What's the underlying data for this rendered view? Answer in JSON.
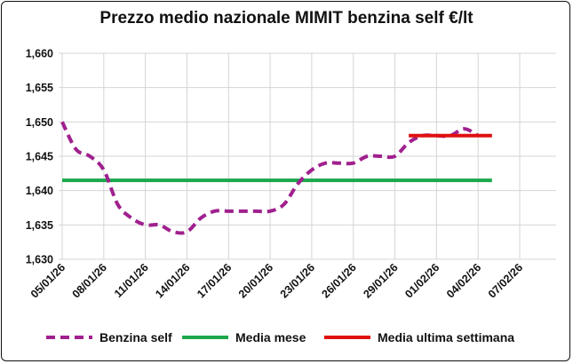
{
  "chart_data": {
    "type": "line",
    "title": "Prezzo medio nazionale MIMIT benzina self €/lt",
    "xlabel": "",
    "ylabel": "",
    "ylim": [
      1.63,
      1.66
    ],
    "y_ticks": [
      "1,630",
      "1,635",
      "1,640",
      "1,645",
      "1,650",
      "1,655",
      "1,660"
    ],
    "x_ticks": [
      "05/01/26",
      "08/01/26",
      "11/01/26",
      "14/01/26",
      "17/01/26",
      "20/01/26",
      "23/01/26",
      "26/01/26",
      "29/01/26",
      "01/02/26",
      "04/02/26",
      "07/02/26"
    ],
    "x": [
      "05/01/26",
      "06/01/26",
      "07/01/26",
      "08/01/26",
      "09/01/26",
      "10/01/26",
      "11/01/26",
      "12/01/26",
      "13/01/26",
      "14/01/26",
      "15/01/26",
      "16/01/26",
      "17/01/26",
      "18/01/26",
      "19/01/26",
      "20/01/26",
      "21/01/26",
      "22/01/26",
      "23/01/26",
      "24/01/26",
      "25/01/26",
      "26/01/26",
      "27/01/26",
      "28/01/26",
      "29/01/26",
      "30/01/26",
      "31/01/26",
      "01/02/26",
      "02/02/26",
      "03/02/26",
      "04/02/26"
    ],
    "series": [
      {
        "name": "Benzina self",
        "color": "#a0208e",
        "style": "dashed",
        "values": [
          1.65,
          1.646,
          1.645,
          1.643,
          1.638,
          1.636,
          1.635,
          1.635,
          1.634,
          1.634,
          1.636,
          1.637,
          1.637,
          1.637,
          1.637,
          1.637,
          1.638,
          1.641,
          1.643,
          1.644,
          1.644,
          1.644,
          1.645,
          1.645,
          1.645,
          1.647,
          1.648,
          1.648,
          1.648,
          1.649,
          1.648
        ]
      },
      {
        "name": "Media mese",
        "color": "#1aa84a",
        "style": "solid",
        "range": [
          "05/01/26",
          "05/02/26"
        ],
        "value": 1.6415
      },
      {
        "name": "Media ultima settimana",
        "color": "#e01010",
        "style": "solid",
        "range": [
          "30/01/26",
          "05/02/26"
        ],
        "value": 1.648
      }
    ],
    "grid": "horizontal",
    "legend_position": "bottom"
  }
}
